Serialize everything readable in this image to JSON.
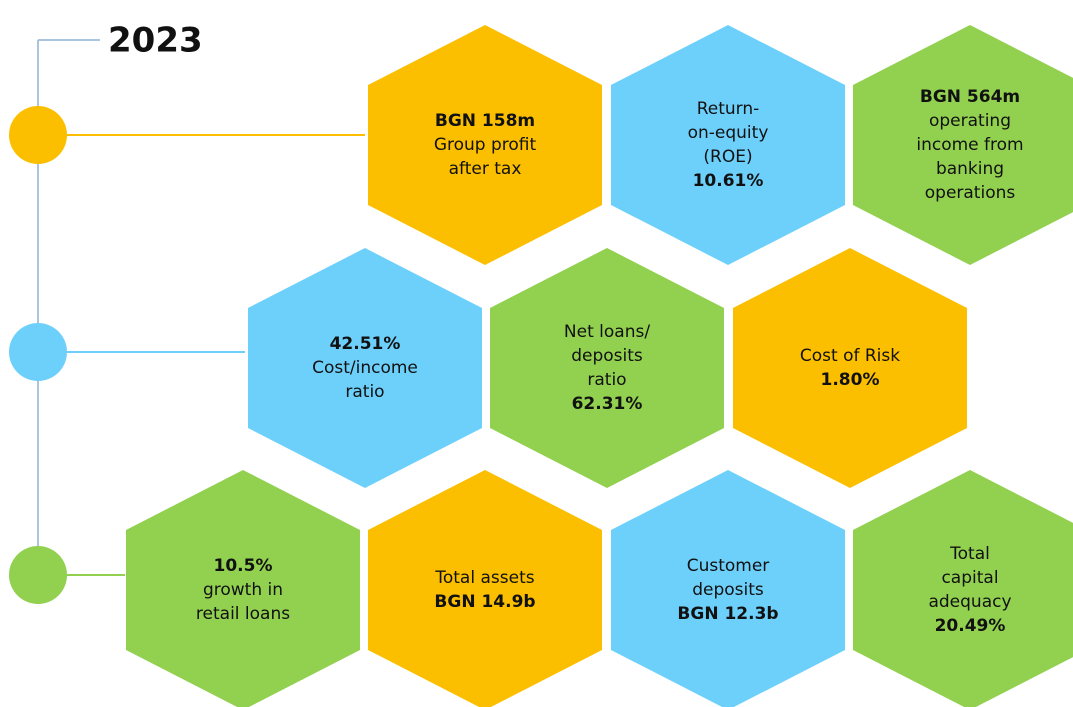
{
  "year": "2023",
  "timeline": {
    "markers": [
      "#fbbf00",
      "#6dd0fb",
      "#92d050"
    ]
  },
  "hexagons": [
    {
      "color": "#fbbf00",
      "lines": [
        {
          "text": "BGN 158m",
          "bold": true
        },
        {
          "text": "Group profit",
          "bold": false
        },
        {
          "text": "after tax",
          "bold": false
        }
      ]
    },
    {
      "color": "#6dd0fb",
      "lines": [
        {
          "text": "Return-",
          "bold": false
        },
        {
          "text": "on-equity",
          "bold": false
        },
        {
          "text": "(ROE)",
          "bold": false
        },
        {
          "text": "10.61%",
          "bold": true
        }
      ]
    },
    {
      "color": "#92d050",
      "lines": [
        {
          "text": "BGN 564m",
          "bold": true
        },
        {
          "text": "operating",
          "bold": false
        },
        {
          "text": "income from",
          "bold": false
        },
        {
          "text": "banking",
          "bold": false
        },
        {
          "text": "operations",
          "bold": false
        }
      ]
    },
    {
      "color": "#6dd0fb",
      "lines": [
        {
          "text": "42.51%",
          "bold": true
        },
        {
          "text": "Cost/income",
          "bold": false
        },
        {
          "text": "ratio",
          "bold": false
        }
      ]
    },
    {
      "color": "#92d050",
      "lines": [
        {
          "text": "Net loans/",
          "bold": false
        },
        {
          "text": "deposits",
          "bold": false
        },
        {
          "text": "ratio",
          "bold": false
        },
        {
          "text": "62.31%",
          "bold": true
        }
      ]
    },
    {
      "color": "#fbbf00",
      "lines": [
        {
          "text": "Cost of Risk",
          "bold": false
        },
        {
          "text": "1.80%",
          "bold": true
        }
      ]
    },
    {
      "color": "#92d050",
      "lines": [
        {
          "text": "10.5%",
          "bold": true
        },
        {
          "text": "growth in",
          "bold": false
        },
        {
          "text": "retail loans",
          "bold": false
        }
      ]
    },
    {
      "color": "#fbbf00",
      "lines": [
        {
          "text": "Total assets",
          "bold": false
        },
        {
          "text": "BGN 14.9b",
          "bold": true
        }
      ]
    },
    {
      "color": "#6dd0fb",
      "lines": [
        {
          "text": "Customer",
          "bold": false
        },
        {
          "text": "deposits",
          "bold": false
        },
        {
          "text": "BGN 12.3b",
          "bold": true
        }
      ]
    },
    {
      "color": "#92d050",
      "lines": [
        {
          "text": "Total",
          "bold": false
        },
        {
          "text": "capital",
          "bold": false
        },
        {
          "text": "adequacy",
          "bold": false
        },
        {
          "text": "20.49%",
          "bold": true
        }
      ]
    }
  ]
}
